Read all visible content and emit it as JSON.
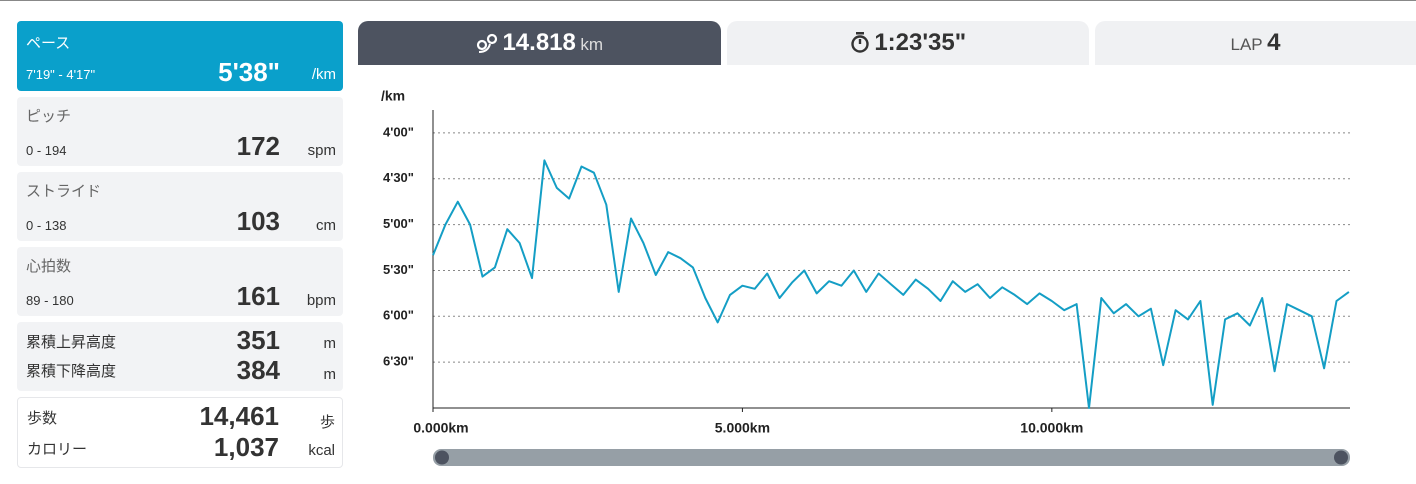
{
  "sidebar": {
    "pace": {
      "label": "ペース",
      "range": "7'19\" - 4'17\"",
      "value": "5'38\"",
      "unit": "/km"
    },
    "pitch": {
      "label": "ピッチ",
      "range": "0 - 194",
      "value": "172",
      "unit": "spm"
    },
    "stride": {
      "label": "ストライド",
      "range": "0 - 138",
      "value": "103",
      "unit": "cm"
    },
    "heart_rate": {
      "label": "心拍数",
      "range": "89 - 180",
      "value": "161",
      "unit": "bpm"
    },
    "elevation": {
      "ascent_label": "累積上昇高度",
      "ascent_value": "351",
      "ascent_unit": "m",
      "descent_label": "累積下降高度",
      "descent_value": "384",
      "descent_unit": "m"
    },
    "steps": {
      "steps_label": "歩数",
      "steps_value": "14,461",
      "steps_unit": "歩",
      "calories_label": "カロリー",
      "calories_value": "1,037",
      "calories_unit": "kcal"
    }
  },
  "tabs": {
    "distance_value": "14.818",
    "distance_unit": "km",
    "time_value": "1:23'35\"",
    "lap_label": "LAP",
    "lap_value": "4"
  },
  "chart_data": {
    "type": "line",
    "y_label": "/km",
    "color": "#149ec5",
    "grid": true,
    "y_reversed": true,
    "xlim": [
      0,
      14.818
    ],
    "ylim": [
      225,
      420
    ],
    "xticks": [
      {
        "value": 0,
        "label": "0.000km"
      },
      {
        "value": 5,
        "label": "5.000km"
      },
      {
        "value": 10,
        "label": "10.000km"
      }
    ],
    "yticks": [
      {
        "value": 240,
        "label": "4'00\""
      },
      {
        "value": 270,
        "label": "4'30\""
      },
      {
        "value": 300,
        "label": "5'00\""
      },
      {
        "value": 330,
        "label": "5'30\""
      },
      {
        "value": 360,
        "label": "6'00\""
      },
      {
        "value": 390,
        "label": "6'30\""
      }
    ],
    "x": [
      0.0,
      0.2,
      0.4,
      0.6,
      0.8,
      1.0,
      1.2,
      1.4,
      1.6,
      1.8,
      2.0,
      2.2,
      2.4,
      2.6,
      2.8,
      3.0,
      3.2,
      3.4,
      3.6,
      3.8,
      4.0,
      4.2,
      4.4,
      4.6,
      4.8,
      5.0,
      5.2,
      5.4,
      5.6,
      5.8,
      6.0,
      6.2,
      6.4,
      6.6,
      6.8,
      7.0,
      7.2,
      7.4,
      7.6,
      7.8,
      8.0,
      8.2,
      8.4,
      8.6,
      8.8,
      9.0,
      9.2,
      9.4,
      9.6,
      9.8,
      10.0,
      10.2,
      10.4,
      10.6,
      10.8,
      11.0,
      11.2,
      11.4,
      11.6,
      11.8,
      12.0,
      12.2,
      12.4,
      12.6,
      12.8,
      13.0,
      13.2,
      13.4,
      13.6,
      13.8,
      14.0,
      14.2,
      14.4,
      14.6,
      14.8
    ],
    "values": [
      320,
      300,
      285,
      300,
      334,
      328,
      303,
      312,
      335,
      258,
      276,
      283,
      262,
      266,
      287,
      344,
      296,
      312,
      333,
      318,
      322,
      328,
      348,
      364,
      346,
      340,
      342,
      332,
      348,
      338,
      330,
      345,
      337,
      340,
      330,
      344,
      332,
      339,
      346,
      336,
      342,
      350,
      337,
      344,
      339,
      348,
      341,
      346,
      352,
      345,
      350,
      356,
      352,
      420,
      348,
      358,
      352,
      360,
      355,
      392,
      356,
      362,
      350,
      418,
      362,
      358,
      366,
      348,
      396,
      352,
      356,
      360,
      394,
      350,
      344
    ]
  }
}
